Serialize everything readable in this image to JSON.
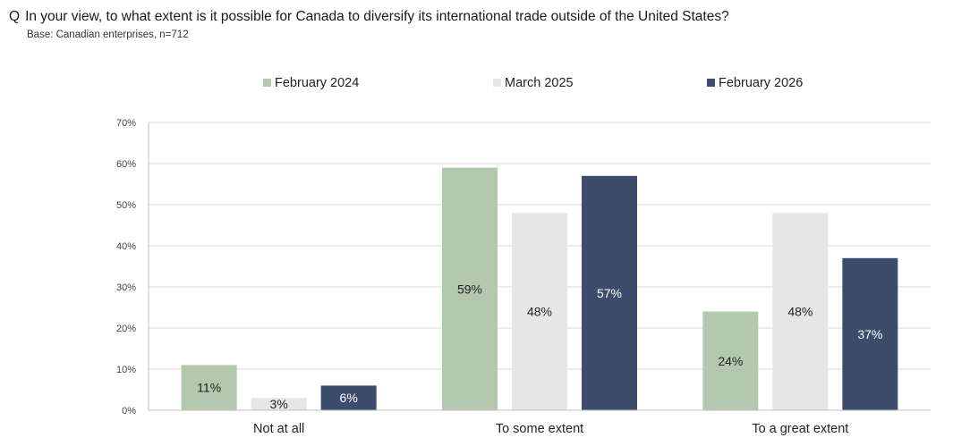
{
  "header": {
    "q_marker": "Q",
    "question": "In your view, to what extent is it possible for Canada to diversify its international trade outside of the United States?",
    "base": "Base: Canadian  enterprises,  n=712"
  },
  "chart_data": {
    "type": "bar",
    "title": "In your view, to what extent is it possible for Canada to diversify its international trade outside of the United States?",
    "subtitle": "Base: Canadian  enterprises,  n=712",
    "categories": [
      "Not at all",
      "To some extent",
      "To a great extent"
    ],
    "series": [
      {
        "name": "February 2024",
        "values": [
          11,
          59,
          24
        ],
        "labels": [
          "11%",
          "59%",
          "24%"
        ],
        "color": "#b3c8ae",
        "label_color": "#222222"
      },
      {
        "name": "March 2025",
        "values": [
          3,
          48,
          48
        ],
        "labels": [
          "3%",
          "48%",
          "48%"
        ],
        "color": "#e6e6e6",
        "label_color": "#222222"
      },
      {
        "name": "February 2026",
        "values": [
          6,
          57,
          37
        ],
        "labels": [
          "6%",
          "57%",
          "37%"
        ],
        "color": "#3c4d6b",
        "label_color": "#ffffff"
      }
    ],
    "yticks": [
      "0%",
      "10%",
      "20%",
      "30%",
      "40%",
      "50%",
      "60%",
      "70%"
    ],
    "ylim": [
      0,
      70
    ],
    "unit": "%",
    "grid": true,
    "legend_position": "top-center",
    "xlabel": "",
    "ylabel": ""
  }
}
